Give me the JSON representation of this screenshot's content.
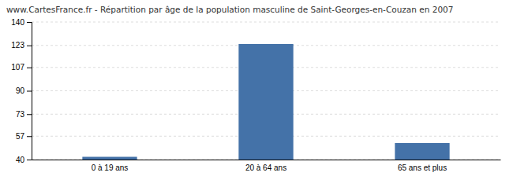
{
  "chart_data": {
    "type": "bar",
    "title": "www.CartesFrance.fr - Répartition par âge de la population masculine de Saint-Georges-en-Couzan en 2007",
    "categories": [
      "0 à 19 ans",
      "20 à 64 ans",
      "65 ans et plus"
    ],
    "values": [
      42,
      124,
      52
    ],
    "color": "#4472a8",
    "ylim": [
      40,
      140
    ],
    "yticks": [
      40,
      57,
      73,
      90,
      107,
      123,
      140
    ],
    "grid": true
  }
}
